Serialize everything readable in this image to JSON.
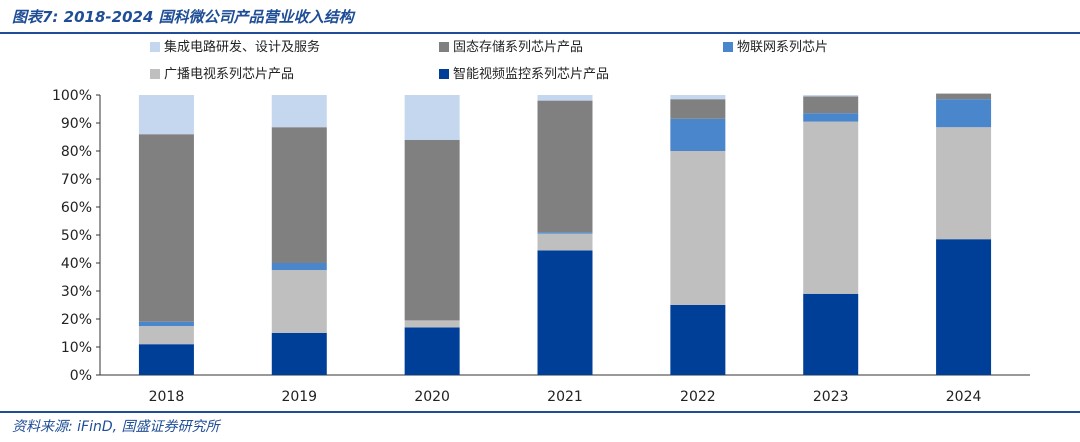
{
  "title": "图表7: 2018-2024 国科微公司产品营业收入结构",
  "source": "资料来源: iFinD, 国盛证券研究所",
  "chart_data": {
    "type": "bar",
    "stacked": true,
    "categories": [
      "2018",
      "2019",
      "2020",
      "2021",
      "2022",
      "2023",
      "2024"
    ],
    "ylim": [
      0,
      100
    ],
    "y_ticks": [
      "0%",
      "10%",
      "20%",
      "30%",
      "40%",
      "50%",
      "60%",
      "70%",
      "80%",
      "90%",
      "100%"
    ],
    "grid": false,
    "legend_position": "top",
    "series": [
      {
        "name": "智能视频监控系列芯片产品",
        "color": "#003f98",
        "values": [
          11,
          15,
          17,
          44.5,
          25,
          29,
          48.5
        ]
      },
      {
        "name": "广播电视系列芯片产品",
        "color": "#bfbfbf",
        "values": [
          6.5,
          22.5,
          2.5,
          6,
          55,
          61.5,
          40
        ]
      },
      {
        "name": "物联网系列芯片",
        "color": "#4a86cb",
        "values": [
          1.5,
          2.5,
          0,
          0.5,
          11.5,
          3,
          10
        ]
      },
      {
        "name": "固态存储系列芯片产品",
        "color": "#808080",
        "values": [
          67,
          48.5,
          64.5,
          47,
          7,
          6,
          2
        ]
      },
      {
        "name": "集成电路研发、设计及服务",
        "color": "#c5d7ee",
        "values": [
          14,
          11.5,
          16,
          2,
          1.5,
          0.5,
          0
        ]
      }
    ],
    "legend_order": [
      4,
      3,
      2,
      1,
      0
    ]
  }
}
